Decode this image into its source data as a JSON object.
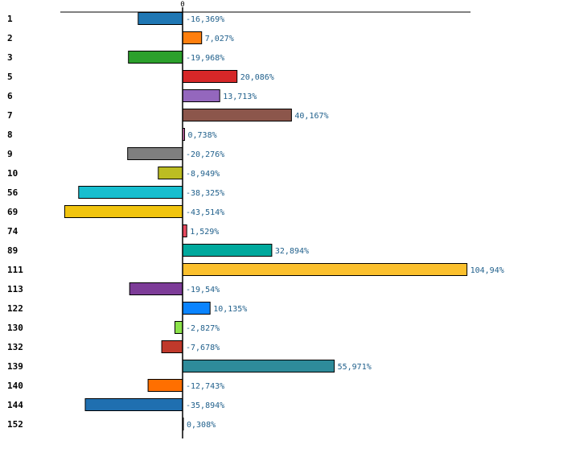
{
  "chart_data": {
    "type": "bar",
    "orientation": "horizontal",
    "title": "",
    "xlabel": "",
    "ylabel": "",
    "xlim": [
      -50,
      120
    ],
    "zero_tick_label": "0",
    "categories": [
      "1",
      "2",
      "3",
      "5",
      "6",
      "7",
      "8",
      "9",
      "10",
      "56",
      "69",
      "74",
      "89",
      "111",
      "113",
      "122",
      "130",
      "132",
      "139",
      "140",
      "144",
      "152"
    ],
    "values": [
      -16.369,
      7.027,
      -19.968,
      20.086,
      13.713,
      40.167,
      0.738,
      -20.276,
      -8.949,
      -38.325,
      -43.514,
      1.529,
      32.894,
      104.94,
      -19.54,
      10.135,
      -2.827,
      -7.678,
      55.971,
      -12.743,
      -35.894,
      0.308
    ],
    "value_labels": [
      "-16,369%",
      "7,027%",
      "-19,968%",
      "20,086%",
      "13,713%",
      "40,167%",
      "0,738%",
      "-20,276%",
      "-8,949%",
      "-38,325%",
      "-43,514%",
      "1,529%",
      "32,894%",
      "104,94%",
      "-19,54%",
      "10,135%",
      "-2,827%",
      "-7,678%",
      "55,971%",
      "-12,743%",
      "-35,894%",
      "0,308%"
    ],
    "colors": [
      "#1f77b4",
      "#ff7f0e",
      "#2ca02c",
      "#d62728",
      "#9467bd",
      "#8c564b",
      "#e377c2",
      "#7f7f7f",
      "#bcbd22",
      "#17becf",
      "#f1c40f",
      "#e84a5f",
      "#00a99d",
      "#fbc02d",
      "#7d3c98",
      "#0a84ff",
      "#8ce34a",
      "#c0392b",
      "#2e8b9a",
      "#ff6f00",
      "#1f6fb0",
      "#cccccc"
    ],
    "label_color": "#1f5f8b"
  }
}
